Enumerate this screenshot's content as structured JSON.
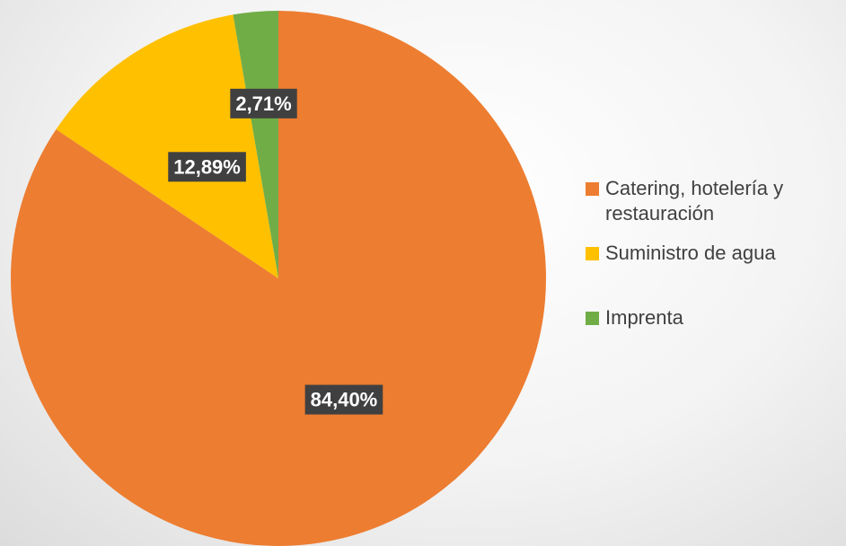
{
  "chart_data": {
    "type": "pie",
    "categories": [
      "Catering, hotelería y restauración",
      "Suministro de agua",
      "Imprenta"
    ],
    "values": [
      84.4,
      12.89,
      2.71
    ],
    "value_labels": [
      "84,40%",
      "12,89%",
      "2,71%"
    ],
    "colors": [
      "#ed7d31",
      "#ffc000",
      "#70ad47"
    ],
    "legend": "right"
  }
}
